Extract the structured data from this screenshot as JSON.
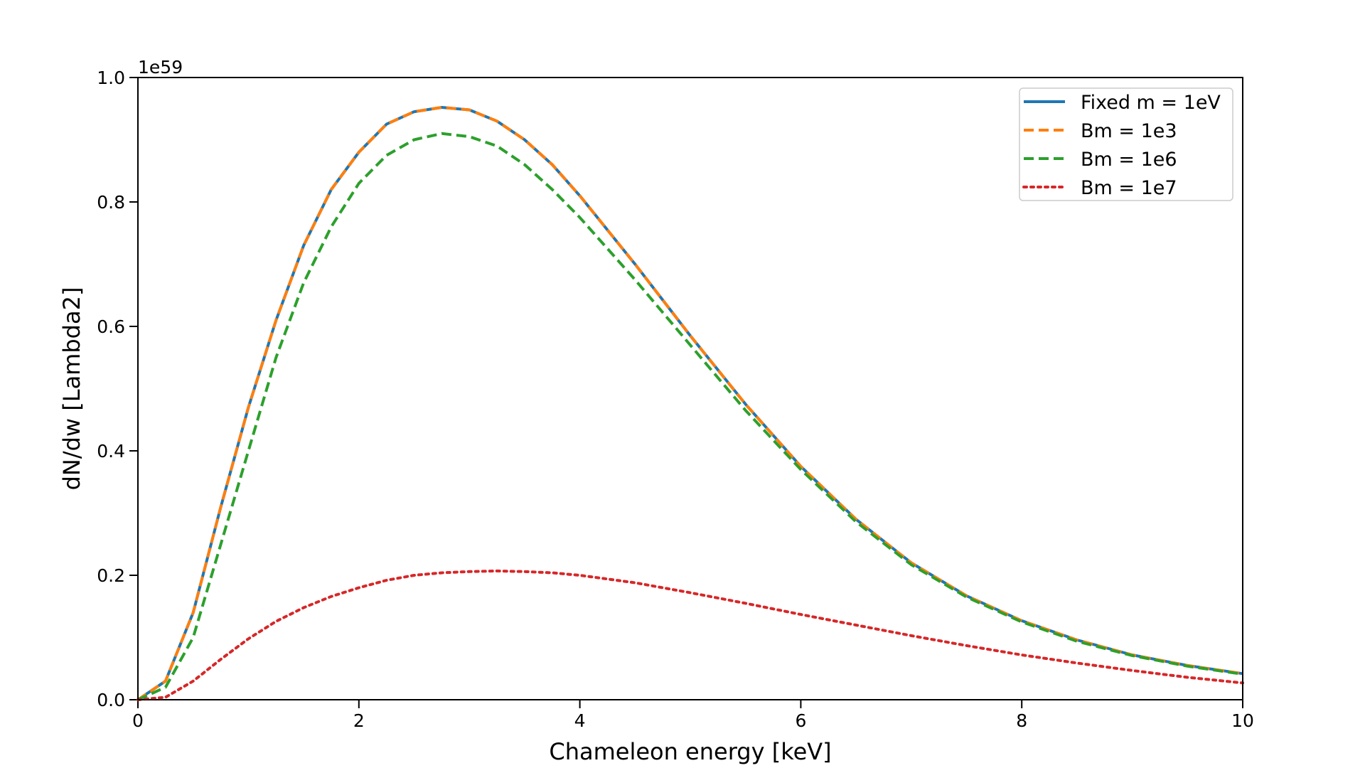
{
  "chart_data": {
    "type": "line",
    "title": "",
    "xlabel": "Chameleon energy [keV]",
    "ylabel": "dN/dw [Lambda2]",
    "y_offset_label": "1e59",
    "xlim": [
      0,
      10
    ],
    "ylim": [
      0,
      1.0
    ],
    "xticks": [
      0,
      2,
      4,
      6,
      8,
      10
    ],
    "yticks": [
      0.0,
      0.2,
      0.4,
      0.6,
      0.8,
      1.0
    ],
    "xtick_labels": [
      "0",
      "2",
      "4",
      "6",
      "8",
      "10"
    ],
    "ytick_labels": [
      "0.0",
      "0.2",
      "0.4",
      "0.6",
      "0.8",
      "1.0"
    ],
    "grid": false,
    "legend_position": "top-right",
    "x": [
      0,
      0.25,
      0.5,
      0.75,
      1.0,
      1.25,
      1.5,
      1.75,
      2.0,
      2.25,
      2.5,
      2.75,
      3.0,
      3.25,
      3.5,
      3.75,
      4.0,
      4.5,
      5.0,
      5.5,
      6.0,
      6.5,
      7.0,
      7.5,
      8.0,
      8.5,
      9.0,
      9.5,
      10.0
    ],
    "series": [
      {
        "name": "Fixed m = 1eV",
        "color": "#1f77b4",
        "style": "solid",
        "values": [
          0,
          0.03,
          0.14,
          0.31,
          0.47,
          0.61,
          0.73,
          0.82,
          0.88,
          0.925,
          0.945,
          0.952,
          0.948,
          0.93,
          0.9,
          0.86,
          0.81,
          0.7,
          0.585,
          0.475,
          0.375,
          0.29,
          0.22,
          0.167,
          0.127,
          0.096,
          0.072,
          0.055,
          0.042
        ]
      },
      {
        "name": "Bm = 1e3",
        "color": "#ff7f0e",
        "style": "dashed",
        "values": [
          0,
          0.03,
          0.14,
          0.31,
          0.47,
          0.61,
          0.73,
          0.82,
          0.88,
          0.925,
          0.945,
          0.952,
          0.948,
          0.93,
          0.9,
          0.86,
          0.81,
          0.7,
          0.585,
          0.475,
          0.375,
          0.29,
          0.22,
          0.167,
          0.127,
          0.096,
          0.072,
          0.055,
          0.042
        ]
      },
      {
        "name": "Bm = 1e6",
        "color": "#2ca02c",
        "style": "dashed",
        "values": [
          0,
          0.02,
          0.1,
          0.25,
          0.4,
          0.55,
          0.67,
          0.76,
          0.83,
          0.875,
          0.9,
          0.91,
          0.905,
          0.89,
          0.86,
          0.82,
          0.775,
          0.675,
          0.57,
          0.465,
          0.37,
          0.286,
          0.217,
          0.165,
          0.125,
          0.094,
          0.071,
          0.054,
          0.041
        ]
      },
      {
        "name": "Bm = 1e7",
        "color": "#d62728",
        "style": "dotted",
        "values": [
          0,
          0.004,
          0.03,
          0.065,
          0.098,
          0.126,
          0.148,
          0.166,
          0.18,
          0.192,
          0.2,
          0.204,
          0.206,
          0.207,
          0.206,
          0.204,
          0.2,
          0.188,
          0.172,
          0.155,
          0.137,
          0.12,
          0.103,
          0.087,
          0.072,
          0.059,
          0.047,
          0.036,
          0.027
        ]
      }
    ]
  }
}
